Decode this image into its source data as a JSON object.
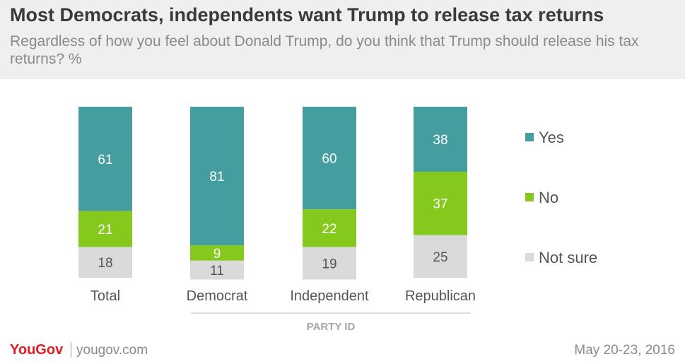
{
  "header": {
    "title": "Most Democrats, independents  want Trump to release tax returns",
    "subtitle": "Regardless of how you feel about Donald Trump, do you think that Trump should release his tax returns? %"
  },
  "footer": {
    "brand": "YouGov",
    "site": "yougov.com",
    "date": "May 20-23, 2016"
  },
  "chart_data": {
    "type": "bar",
    "stacked": true,
    "categories": [
      "Total",
      "Democrat",
      "Independent",
      "Republican"
    ],
    "group_label": "PARTY ID",
    "series": [
      {
        "name": "Yes",
        "color": "#449e9f",
        "values": [
          61,
          81,
          60,
          38
        ]
      },
      {
        "name": "No",
        "color": "#84c91b",
        "values": [
          21,
          9,
          22,
          37
        ]
      },
      {
        "name": "Not sure",
        "color": "#dadada",
        "values": [
          18,
          11,
          19,
          25
        ]
      }
    ],
    "ylim": [
      0,
      100
    ],
    "legend_position": "right",
    "grid": false
  }
}
